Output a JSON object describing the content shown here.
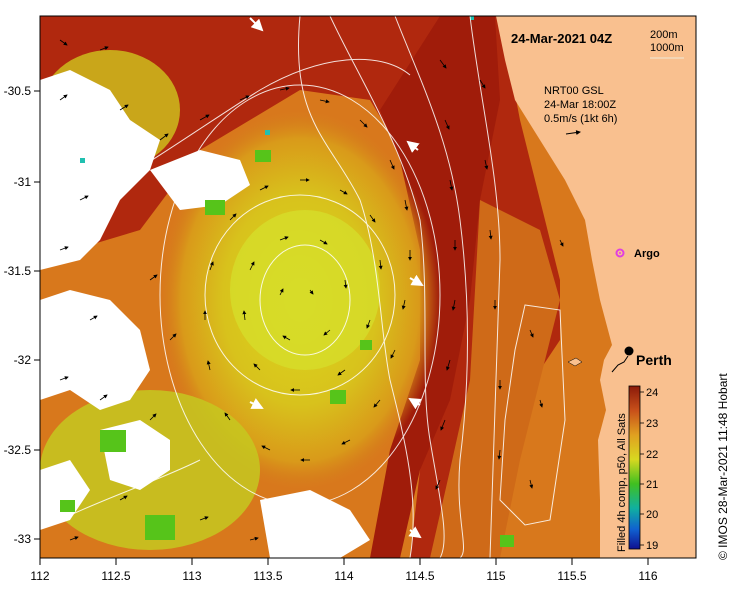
{
  "title": "24-Mar-2021 04Z",
  "depth_legend": {
    "line1": "200m",
    "line2": "1000m"
  },
  "velocity_note": {
    "line1": "NRT00 GSL",
    "line2": "24-Mar 18:00Z",
    "line3": "0.5m/s (1kt 6h)"
  },
  "colorbar": {
    "label": "Filled 4h comp, p50, All Sats",
    "ticks": [
      "24",
      "23",
      "22",
      "21",
      "20",
      "19"
    ],
    "min": 19,
    "max": 24
  },
  "credit": "© IMOS 28-Mar-2021 11:48 Hobart",
  "places": {
    "city": "Perth",
    "float": "Argo"
  },
  "axes": {
    "x_ticks": [
      "112",
      "112.5",
      "113",
      "113.5",
      "114",
      "114.5",
      "115",
      "115.5",
      "116"
    ],
    "y_ticks": [
      "-30.5",
      "-31",
      "-31.5",
      "-32",
      "-32.5",
      "-33"
    ],
    "x_range": [
      112,
      116.3
    ],
    "y_range": [
      -33.1,
      -30.1
    ]
  },
  "colors": {
    "land": "#f9c08f",
    "warm": "#a81e0a",
    "mid": "#d9741a",
    "cool": "#e3d51c",
    "green": "#5fcf1d",
    "marker": "#e040e0"
  }
}
